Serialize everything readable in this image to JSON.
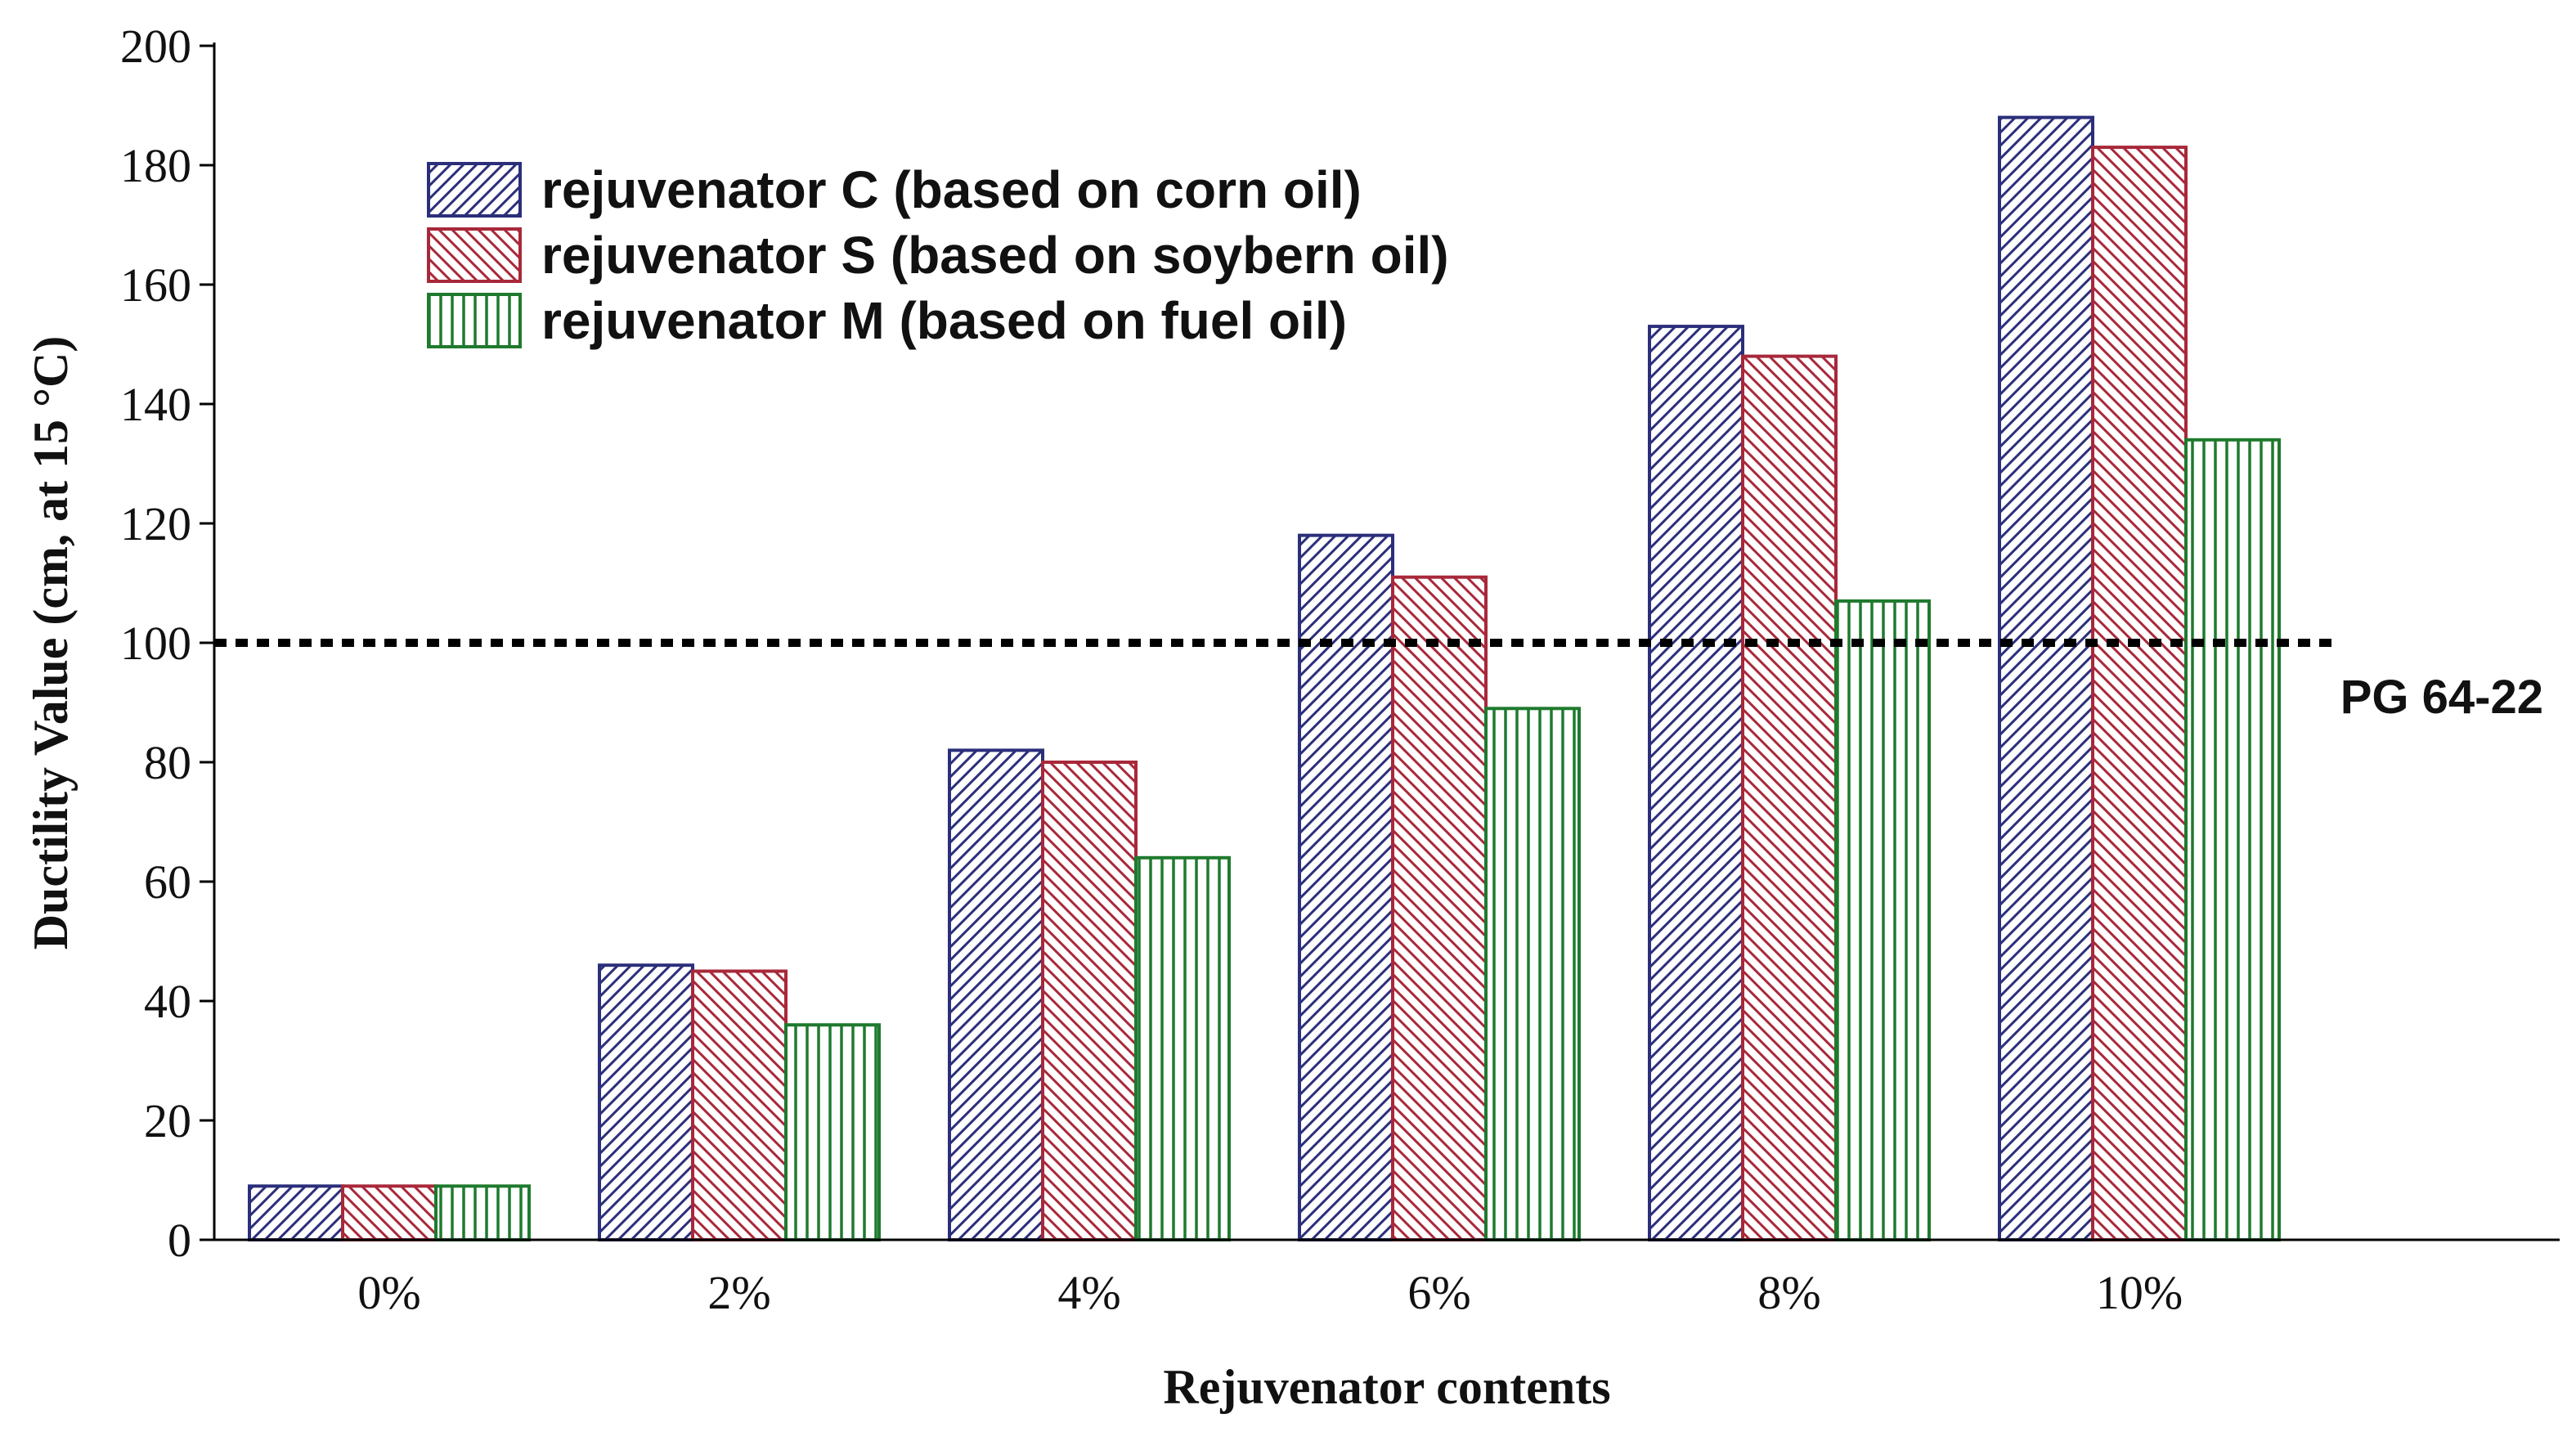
{
  "chart_data": {
    "type": "bar",
    "categories": [
      "0%",
      "2%",
      "4%",
      "6%",
      "8%",
      "10%"
    ],
    "series": [
      {
        "name": "rejuvenator C (based on corn oil)",
        "values": [
          9,
          46,
          82,
          118,
          153,
          188
        ],
        "color": "#2b2f7a",
        "pattern": "hatch-diagonal-right"
      },
      {
        "name": "rejuvenator S (based on soybern oil)",
        "values": [
          9,
          45,
          80,
          111,
          148,
          183
        ],
        "color": "#a8283a",
        "pattern": "hatch-diagonal-left"
      },
      {
        "name": "rejuvenator M (based on fuel oil)",
        "values": [
          9,
          36,
          64,
          89,
          107,
          134
        ],
        "color": "#1f7a2e",
        "pattern": "hatch-vertical"
      }
    ],
    "xlabel": "Rejuvenator contents",
    "ylabel": "Ductility Value (cm, at 15 °C)",
    "ylim": [
      0,
      200
    ],
    "yticks": [
      "0",
      "20",
      "40",
      "60",
      "80",
      "100",
      "120",
      "140",
      "160",
      "180",
      "200"
    ],
    "reference_line": {
      "value": 100,
      "label": "PG 64-22"
    },
    "legend": "top-left",
    "grid": false
  }
}
